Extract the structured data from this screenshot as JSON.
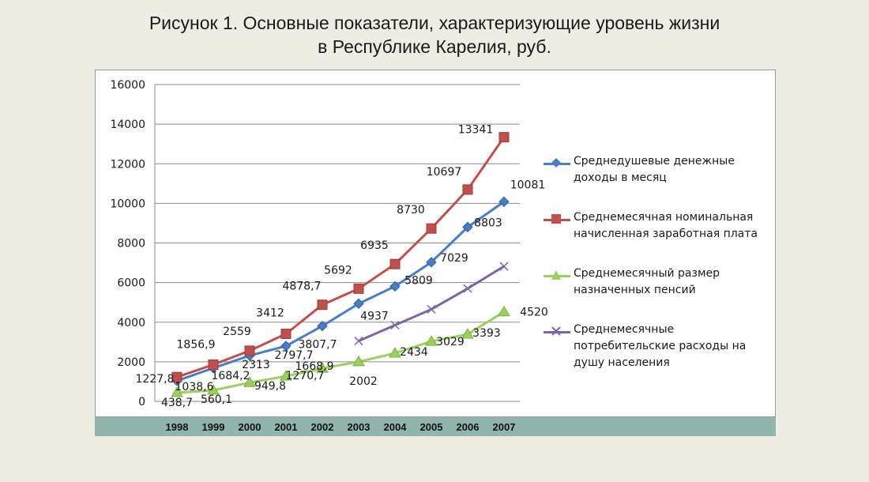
{
  "title": {
    "line1": "Рисунок 1. Основные показатели, характеризующие уровень жизни",
    "line2": "в Республике Карелия, руб."
  },
  "chart_data": {
    "type": "line",
    "x": [
      "1998",
      "1999",
      "2000",
      "2001",
      "2002",
      "2003",
      "2004",
      "2005",
      "2006",
      "2007"
    ],
    "ylim": [
      0,
      16000
    ],
    "yticks": [
      "0",
      "2000",
      "4000",
      "6000",
      "8000",
      "10000",
      "12000",
      "14000",
      "16000"
    ],
    "grid": true,
    "legend_position": "right",
    "series": [
      {
        "name_lines": [
          "Среднедушевые денежные",
          "доходы в месяц"
        ],
        "color": "#4a7ec3",
        "marker": "diamond",
        "values": [
          1038.6,
          1684.2,
          2313,
          2797.7,
          3807.7,
          4937,
          5809,
          7029,
          8803,
          10081
        ],
        "labels": [
          "1038,6",
          "1684,2",
          "2313",
          "2797,7",
          "3807,7",
          "4937",
          "5809",
          "7029",
          "8803",
          "10081"
        ]
      },
      {
        "name_lines": [
          "Среднемесячная номинальная",
          "начисленная заработная плата"
        ],
        "color": "#c0504d",
        "marker": "square",
        "values": [
          1227.8,
          1856.9,
          2559,
          3412,
          4878.7,
          5692,
          6935,
          8730,
          10697,
          13341
        ],
        "labels": [
          "1227,8",
          "1856,9",
          "2559",
          "3412",
          "4878,7",
          "5692",
          "6935",
          "8730",
          "10697",
          "13341"
        ]
      },
      {
        "name_lines": [
          "Среднемесячный размер",
          "назначенных пенсий"
        ],
        "color": "#9bcf5e",
        "marker": "triangle",
        "values": [
          438.7,
          560.1,
          949.8,
          1270.7,
          1668.9,
          2002,
          2434,
          3029,
          3393,
          4520
        ],
        "labels": [
          "438,7",
          "560,1",
          "949,8",
          "1270,7",
          "1668,9",
          "2002",
          "2434",
          "3029",
          "3393",
          "4520"
        ]
      },
      {
        "name_lines": [
          "Среднемесячные",
          "потребительские расходы на",
          "душу населения"
        ],
        "color": "#8064a2",
        "marker": "x",
        "values": [
          null,
          null,
          null,
          null,
          null,
          3050,
          3850,
          4650,
          5700,
          6820
        ],
        "labels": []
      }
    ]
  }
}
